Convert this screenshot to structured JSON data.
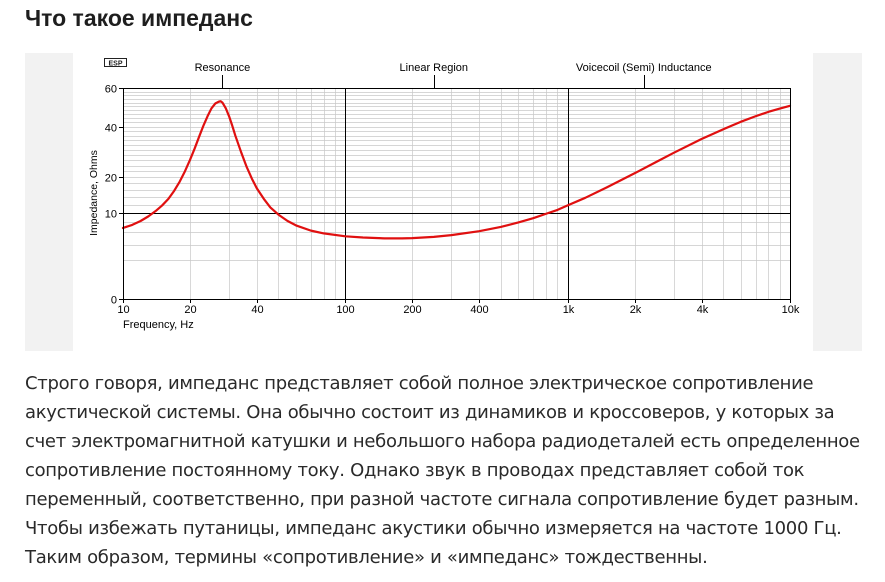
{
  "title": "Что такое импеданс",
  "body_text": "Строго говоря, импеданс представляет собой полное электрическое сопротивление акустической системы. Она обычно состоит из динамиков и кроссоверов, у которых за счет электромагнитной катушки и небольшого набора радиодеталей есть определенное сопротивление постоянному току. Однако звук в проводах представляет собой ток переменный, соответственно, при разной частоте сигнала сопротивление будет разным. Чтобы избежать путаницы, импеданс акустики обычно измеряется на частоте 1000 Гц. Таким образом, термины «сопротивление» и «импеданс» тождественны.",
  "chart_data": {
    "type": "line",
    "logo_text": "ESP",
    "title": "",
    "xlabel": "Frequency, Hz",
    "ylabel": "Impedance, Ohms",
    "x_scale": "log",
    "y_scale": "sqrt",
    "xlim": [
      10,
      10000
    ],
    "ylim": [
      0,
      60
    ],
    "x_ticks": [
      {
        "value": 10,
        "label": "10"
      },
      {
        "value": 20,
        "label": "20"
      },
      {
        "value": 40,
        "label": "40"
      },
      {
        "value": 100,
        "label": "100"
      },
      {
        "value": 200,
        "label": "200"
      },
      {
        "value": 400,
        "label": "400"
      },
      {
        "value": 1000,
        "label": "1k"
      },
      {
        "value": 2000,
        "label": "2k"
      },
      {
        "value": 4000,
        "label": "4k"
      },
      {
        "value": 10000,
        "label": "10k"
      }
    ],
    "y_ticks": [
      {
        "value": 0,
        "label": "0"
      },
      {
        "value": 10,
        "label": "10"
      },
      {
        "value": 20,
        "label": "20"
      },
      {
        "value": 40,
        "label": "40"
      },
      {
        "value": 60,
        "label": "60"
      }
    ],
    "grid": {
      "major_x": [
        100,
        1000
      ],
      "major_y": [
        10
      ],
      "minor": true
    },
    "region_labels": [
      {
        "text": "Resonance",
        "x": 28
      },
      {
        "text": "Linear Region",
        "x": 250
      },
      {
        "text": "Voicecoil (Semi) Inductance",
        "x": 2200
      }
    ],
    "series": [
      {
        "color": "#e01010",
        "points": [
          [
            10,
            6.8
          ],
          [
            11,
            7.4
          ],
          [
            12,
            8.2
          ],
          [
            13,
            9.2
          ],
          [
            14,
            10.4
          ],
          [
            15,
            11.8
          ],
          [
            16,
            13.5
          ],
          [
            17,
            15.8
          ],
          [
            18,
            18.6
          ],
          [
            19,
            22
          ],
          [
            20,
            26
          ],
          [
            21,
            30.5
          ],
          [
            22,
            35.5
          ],
          [
            23,
            40.5
          ],
          [
            24,
            45
          ],
          [
            25,
            49
          ],
          [
            26,
            51.5
          ],
          [
            27,
            52.5
          ],
          [
            27.5,
            52.7
          ],
          [
            28,
            52
          ],
          [
            29,
            49
          ],
          [
            30,
            45
          ],
          [
            31,
            40.5
          ],
          [
            32,
            36
          ],
          [
            34,
            29
          ],
          [
            36,
            23.5
          ],
          [
            38,
            19.5
          ],
          [
            40,
            16.5
          ],
          [
            43,
            13.5
          ],
          [
            46,
            11.3
          ],
          [
            50,
            9.6
          ],
          [
            55,
            8.2
          ],
          [
            60,
            7.3
          ],
          [
            70,
            6.3
          ],
          [
            80,
            5.8
          ],
          [
            100,
            5.3
          ],
          [
            120,
            5.1
          ],
          [
            150,
            4.95
          ],
          [
            180,
            4.95
          ],
          [
            200,
            5.0
          ],
          [
            250,
            5.2
          ],
          [
            300,
            5.5
          ],
          [
            400,
            6.2
          ],
          [
            500,
            7.0
          ],
          [
            600,
            7.9
          ],
          [
            700,
            8.8
          ],
          [
            800,
            9.8
          ],
          [
            900,
            10.7
          ],
          [
            1000,
            11.8
          ],
          [
            1200,
            13.8
          ],
          [
            1500,
            16.8
          ],
          [
            2000,
            21.3
          ],
          [
            2500,
            25.3
          ],
          [
            3000,
            28.8
          ],
          [
            4000,
            34.5
          ],
          [
            5000,
            38.8
          ],
          [
            6000,
            42.3
          ],
          [
            7000,
            45
          ],
          [
            8000,
            47.2
          ],
          [
            9000,
            48.9
          ],
          [
            10000,
            50.3
          ]
        ]
      }
    ]
  }
}
